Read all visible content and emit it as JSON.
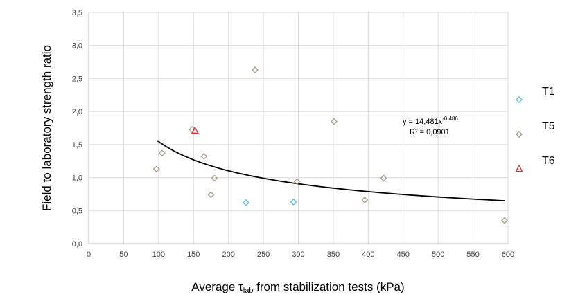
{
  "chart_data": {
    "type": "scatter",
    "xlabel_parts": {
      "before": "Average ",
      "symbol": "τ",
      "subscript": "lab",
      "after": " from stabilization tests (kPa)"
    },
    "ylabel": "Field to laboratory strength ratio",
    "xlim": [
      0,
      600
    ],
    "ylim": [
      0,
      3.5
    ],
    "x_ticks": [
      "0",
      "50",
      "100",
      "150",
      "200",
      "250",
      "300",
      "350",
      "400",
      "450",
      "500",
      "550",
      "600"
    ],
    "y_ticks": [
      "0,0",
      "0,5",
      "1,0",
      "1,5",
      "2,0",
      "2,5",
      "3,0",
      "3,5"
    ],
    "grid": true,
    "series": [
      {
        "name": "T1",
        "marker": "diamond",
        "color": "#4bb8e8",
        "points": [
          [
            225,
            0.62
          ],
          [
            293,
            0.63
          ]
        ]
      },
      {
        "name": "T5",
        "marker": "diamond",
        "color": "#9a9480",
        "points": [
          [
            97,
            1.13
          ],
          [
            105,
            1.37
          ],
          [
            148,
            1.73
          ],
          [
            165,
            1.32
          ],
          [
            175,
            0.74
          ],
          [
            180,
            0.99
          ],
          [
            238,
            2.63
          ],
          [
            298,
            0.94
          ],
          [
            351,
            1.85
          ],
          [
            395,
            0.66
          ],
          [
            422,
            0.99
          ],
          [
            595,
            0.35
          ]
        ]
      },
      {
        "name": "T6",
        "marker": "triangle",
        "color": "#e03030",
        "points": [
          [
            152,
            1.71
          ]
        ]
      }
    ],
    "trendline": {
      "type": "power",
      "a": 14.481,
      "b": -0.486,
      "x_range": [
        98,
        595
      ],
      "equation_prefix": "y = 14,481x",
      "equation_exponent": "-0,486",
      "r2_text": "R² = 0,0901"
    },
    "legend_position": "right"
  }
}
